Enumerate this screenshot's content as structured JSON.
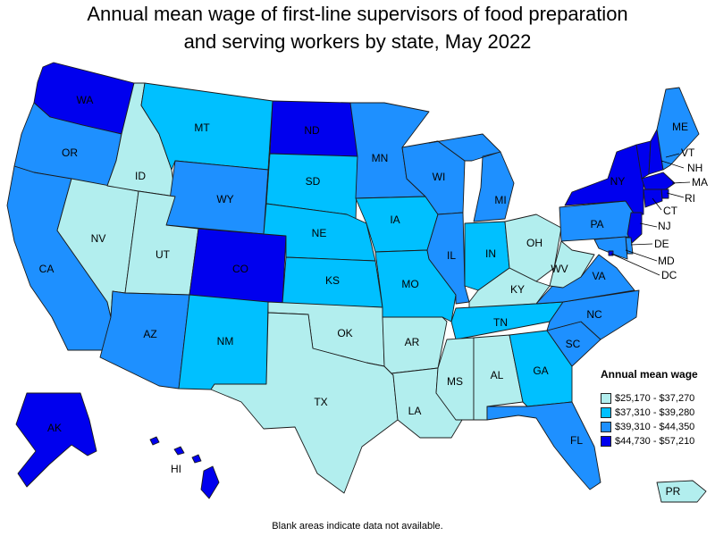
{
  "title_line1": "Annual mean wage of first-line supervisors of food preparation",
  "title_line2": "and serving workers by state, May 2022",
  "colors": {
    "q1": "#b2eeee",
    "q2": "#00c0ff",
    "q3": "#1e90ff",
    "q4": "#0000ee"
  },
  "legend": {
    "title": "Annual mean wage",
    "items": [
      {
        "label": "$25,170 - $37,270",
        "color_key": "q1"
      },
      {
        "label": "$37,310 - $39,280",
        "color_key": "q2"
      },
      {
        "label": "$39,310 - $44,350",
        "color_key": "q3"
      },
      {
        "label": "$44,730 - $57,210",
        "color_key": "q4"
      }
    ]
  },
  "states": {
    "WA": "q4",
    "OR": "q3",
    "CA": "q3",
    "NV": "q1",
    "ID": "q1",
    "MT": "q2",
    "WY": "q3",
    "UT": "q1",
    "AZ": "q3",
    "CO": "q4",
    "NM": "q2",
    "ND": "q4",
    "SD": "q2",
    "NE": "q2",
    "KS": "q2",
    "OK": "q1",
    "TX": "q1",
    "MN": "q3",
    "IA": "q2",
    "MO": "q2",
    "AR": "q1",
    "LA": "q1",
    "WI": "q3",
    "IL": "q3",
    "MI": "q3",
    "IN": "q2",
    "OH": "q1",
    "KY": "q1",
    "TN": "q2",
    "MS": "q1",
    "AL": "q1",
    "GA": "q2",
    "FL": "q3",
    "SC": "q3",
    "NC": "q3",
    "VA": "q3",
    "WV": "q1",
    "PA": "q3",
    "NY": "q4",
    "VT": "q4",
    "NH": "q4",
    "ME": "q3",
    "MA": "q4",
    "RI": "q4",
    "CT": "q4",
    "NJ": "q4",
    "DE": "q3",
    "MD": "q3",
    "DC": "q4",
    "AK": "q4",
    "HI": "q4",
    "PR": "q1"
  },
  "footnote": "Blank areas indicate data not available."
}
